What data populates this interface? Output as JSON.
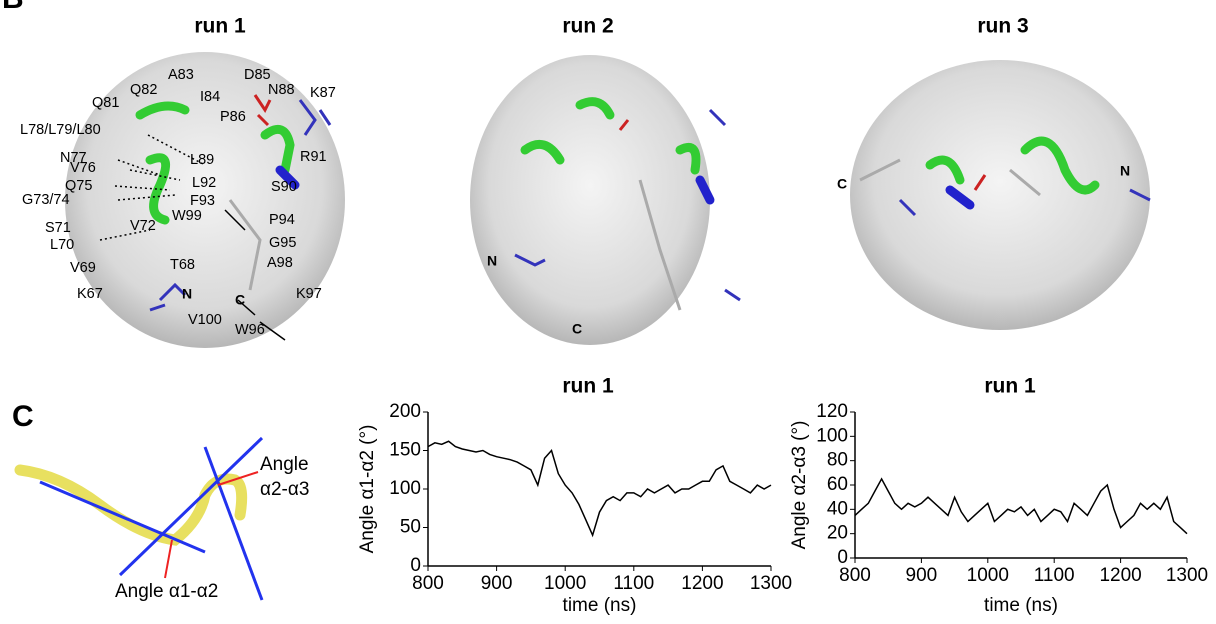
{
  "panel_b": {
    "label": "B",
    "runs": [
      {
        "title": "run 1",
        "residues": [
          "Q81",
          "Q82",
          "A83",
          "I84",
          "D85",
          "N88",
          "K87",
          "P86",
          "L78/L79/L80",
          "N77",
          "L89",
          "V76",
          "R91",
          "Q75",
          "L92",
          "S90",
          "G73/74",
          "F93",
          "W99",
          "P94",
          "S71",
          "V72",
          "L70",
          "G95",
          "V69",
          "T68",
          "A98",
          "K67",
          "K97",
          "V100",
          "W96"
        ],
        "termini": [
          "N",
          "C"
        ]
      },
      {
        "title": "run 2",
        "termini": [
          "N",
          "C"
        ]
      },
      {
        "title": "run 3",
        "termini": [
          "C",
          "N"
        ]
      }
    ]
  },
  "panel_c": {
    "label": "C",
    "angle_a2_a3": [
      "Angle",
      "α2-α3"
    ],
    "angle_a1_a2": "Angle α1-α2"
  },
  "chart_data": [
    {
      "type": "line",
      "title": "run 1",
      "x_label": "time (ns)",
      "y_label": "Angle α1-α2 (°)",
      "color": "#000000",
      "x": [
        800,
        810,
        820,
        830,
        840,
        850,
        860,
        870,
        880,
        890,
        900,
        910,
        920,
        930,
        940,
        950,
        960,
        970,
        980,
        990,
        1000,
        1010,
        1020,
        1030,
        1040,
        1050,
        1060,
        1070,
        1080,
        1090,
        1100,
        1110,
        1120,
        1130,
        1140,
        1150,
        1160,
        1170,
        1180,
        1190,
        1200,
        1210,
        1220,
        1230,
        1240,
        1250,
        1260,
        1270,
        1280,
        1290,
        1300
      ],
      "values": [
        155,
        160,
        158,
        162,
        155,
        152,
        150,
        148,
        150,
        145,
        142,
        140,
        138,
        135,
        130,
        125,
        105,
        140,
        150,
        120,
        105,
        95,
        80,
        60,
        40,
        70,
        85,
        90,
        85,
        95,
        95,
        90,
        100,
        95,
        100,
        105,
        95,
        100,
        100,
        105,
        110,
        110,
        125,
        130,
        110,
        105,
        100,
        95,
        105,
        100,
        105
      ],
      "xlim": [
        800,
        1300
      ],
      "xticks": [
        800,
        900,
        1000,
        1100,
        1200,
        1300
      ],
      "ylim": [
        0,
        200
      ],
      "yticks": [
        0,
        50,
        100,
        150,
        200
      ]
    },
    {
      "type": "line",
      "title": "run 1",
      "x_label": "time (ns)",
      "y_label": "Angle α2-α3 (°)",
      "color": "#000000",
      "x": [
        800,
        810,
        820,
        830,
        840,
        850,
        860,
        870,
        880,
        890,
        900,
        910,
        920,
        930,
        940,
        950,
        960,
        970,
        980,
        990,
        1000,
        1010,
        1020,
        1030,
        1040,
        1050,
        1060,
        1070,
        1080,
        1090,
        1100,
        1110,
        1120,
        1130,
        1140,
        1150,
        1160,
        1170,
        1180,
        1190,
        1200,
        1210,
        1220,
        1230,
        1240,
        1250,
        1260,
        1270,
        1280,
        1290,
        1300
      ],
      "values": [
        35,
        40,
        45,
        55,
        65,
        55,
        45,
        40,
        45,
        42,
        45,
        50,
        45,
        40,
        35,
        50,
        38,
        30,
        35,
        40,
        45,
        30,
        35,
        40,
        38,
        42,
        35,
        40,
        30,
        35,
        40,
        38,
        30,
        45,
        40,
        35,
        45,
        55,
        60,
        40,
        25,
        30,
        35,
        45,
        40,
        45,
        40,
        50,
        30,
        25,
        20
      ],
      "xlim": [
        800,
        1300
      ],
      "xticks": [
        800,
        900,
        1000,
        1100,
        1200,
        1300
      ],
      "ylim": [
        0,
        120
      ],
      "yticks": [
        0,
        20,
        40,
        60,
        80,
        100,
        120
      ]
    }
  ]
}
